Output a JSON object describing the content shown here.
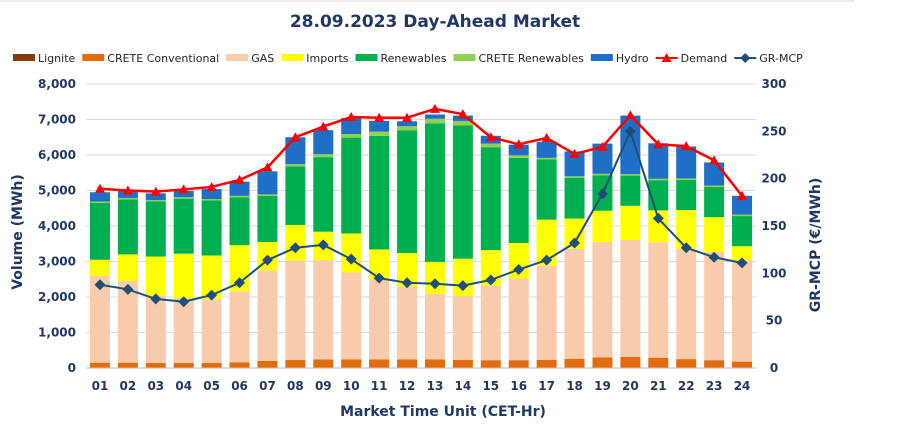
{
  "chart_data": {
    "type": "bar",
    "title": "28.09.2023  Day-Ahead Market",
    "xlabel": "Market Time Unit (CET-Hr)",
    "ylabel": "Volume (MWh)",
    "y2label": "GR-MCP (€/MWh)",
    "ylim": [
      0,
      8000
    ],
    "y2lim": [
      0,
      300
    ],
    "yticks": [
      "0",
      "1,000",
      "2,000",
      "3,000",
      "4,000",
      "5,000",
      "6,000",
      "7,000",
      "8,000"
    ],
    "y2ticks": [
      "0",
      "50",
      "100",
      "150",
      "200",
      "250",
      "300"
    ],
    "legend_position": "top",
    "categories": [
      "01",
      "02",
      "03",
      "04",
      "05",
      "06",
      "07",
      "08",
      "09",
      "10",
      "11",
      "12",
      "13",
      "14",
      "15",
      "16",
      "17",
      "18",
      "19",
      "20",
      "21",
      "22",
      "23",
      "24"
    ],
    "series": [
      {
        "name": "Lignite",
        "kind": "bar",
        "color": "#843c0c",
        "values": [
          0,
          0,
          0,
          0,
          0,
          0,
          0,
          0,
          0,
          0,
          0,
          0,
          0,
          0,
          0,
          0,
          0,
          0,
          0,
          0,
          0,
          0,
          0,
          0
        ]
      },
      {
        "name": "CRETE Conventional",
        "kind": "bar",
        "color": "#e36c0a",
        "values": [
          150,
          150,
          140,
          140,
          140,
          160,
          200,
          230,
          240,
          240,
          240,
          240,
          240,
          230,
          220,
          220,
          230,
          260,
          300,
          310,
          290,
          250,
          220,
          180
        ]
      },
      {
        "name": "GAS",
        "kind": "bar",
        "color": "#f8cbad",
        "values": [
          2450,
          2300,
          1900,
          1830,
          1800,
          2000,
          2550,
          2800,
          2800,
          2450,
          2250,
          2050,
          1850,
          1800,
          2100,
          2300,
          2650,
          3100,
          3250,
          3300,
          3250,
          3100,
          3050,
          2850
        ]
      },
      {
        "name": "Imports",
        "kind": "bar",
        "color": "#ffff00",
        "values": [
          450,
          750,
          1100,
          1250,
          1230,
          1300,
          800,
          1000,
          800,
          1100,
          850,
          950,
          900,
          1050,
          1000,
          1000,
          1300,
          850,
          880,
          960,
          900,
          1100,
          980,
          400
        ]
      },
      {
        "name": "Renewables",
        "kind": "bar",
        "color": "#00b050",
        "values": [
          1600,
          1550,
          1550,
          1550,
          1550,
          1350,
          1300,
          1650,
          2100,
          2700,
          3200,
          3450,
          3900,
          3750,
          2900,
          2400,
          1700,
          1150,
          1000,
          850,
          850,
          850,
          850,
          850
        ]
      },
      {
        "name": "CRETE Renewables",
        "kind": "bar",
        "color": "#92d050",
        "values": [
          40,
          40,
          40,
          40,
          40,
          40,
          40,
          60,
          80,
          100,
          120,
          120,
          130,
          130,
          100,
          70,
          40,
          40,
          40,
          40,
          40,
          40,
          40,
          40
        ]
      },
      {
        "name": "Hydro",
        "kind": "bar",
        "color": "#1f6fc6",
        "values": [
          260,
          230,
          190,
          180,
          280,
          400,
          650,
          760,
          680,
          450,
          300,
          140,
          120,
          150,
          220,
          300,
          450,
          700,
          850,
          1650,
          1000,
          900,
          650,
          530
        ]
      },
      {
        "name": "Demand",
        "kind": "line",
        "color": "#ff0000",
        "marker": "triangle",
        "values": [
          5050,
          5000,
          4970,
          5030,
          5100,
          5300,
          5650,
          6500,
          6800,
          7070,
          7050,
          7050,
          7300,
          7150,
          6500,
          6300,
          6480,
          6030,
          6230,
          7120,
          6300,
          6250,
          5850,
          4850
        ]
      },
      {
        "name": "GR-MCP",
        "kind": "line",
        "axis": "secondary",
        "color": "#1f4e79",
        "marker": "diamond",
        "values": [
          88,
          83,
          73,
          70,
          77,
          90,
          114,
          127,
          130,
          115,
          95,
          90,
          89,
          87,
          93,
          104,
          114,
          132,
          184,
          250,
          158,
          127,
          117,
          111
        ]
      }
    ]
  }
}
